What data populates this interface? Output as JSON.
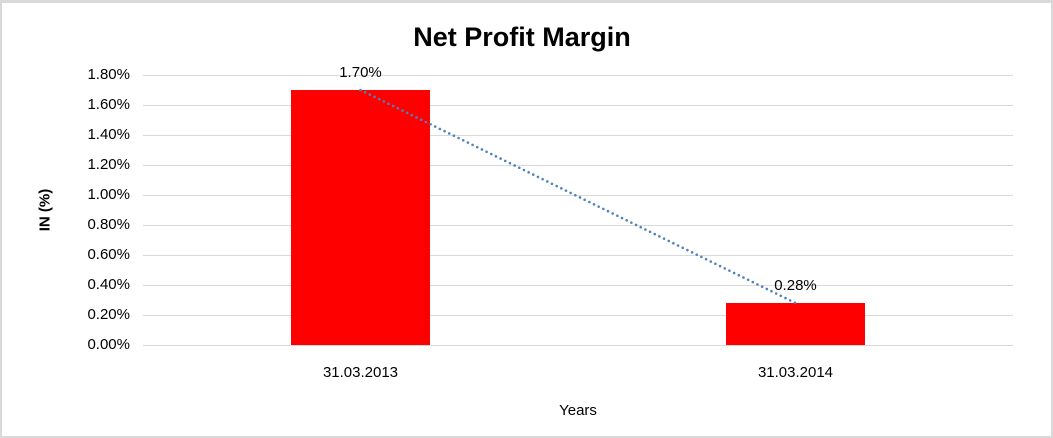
{
  "chart_data": {
    "type": "bar",
    "title": "Net Profit Margin",
    "xlabel": "Years",
    "ylabel": "IN (%)",
    "categories": [
      "31.03.2013",
      "31.03.2014"
    ],
    "series": [
      {
        "name": "Net Profit Margin",
        "values": [
          1.7,
          0.28
        ]
      }
    ],
    "data_labels": [
      "1.70%",
      "0.28%"
    ],
    "ylim": [
      0,
      1.8
    ],
    "ytick_step": 0.2,
    "ytick_labels": [
      "0.00%",
      "0.20%",
      "0.40%",
      "0.60%",
      "0.80%",
      "1.00%",
      "1.20%",
      "1.40%",
      "1.60%",
      "1.80%"
    ],
    "grid": true,
    "legend": "none",
    "bar_color": "#FF0000",
    "trendline": {
      "style": "dotted",
      "color": "#4F81BD",
      "from_value": 1.7,
      "to_value": 0.28
    }
  },
  "colors": {
    "background": "#FFFFFF",
    "border": "#D9D9D9",
    "gridline": "#D9D9D9",
    "text": "#000000"
  }
}
